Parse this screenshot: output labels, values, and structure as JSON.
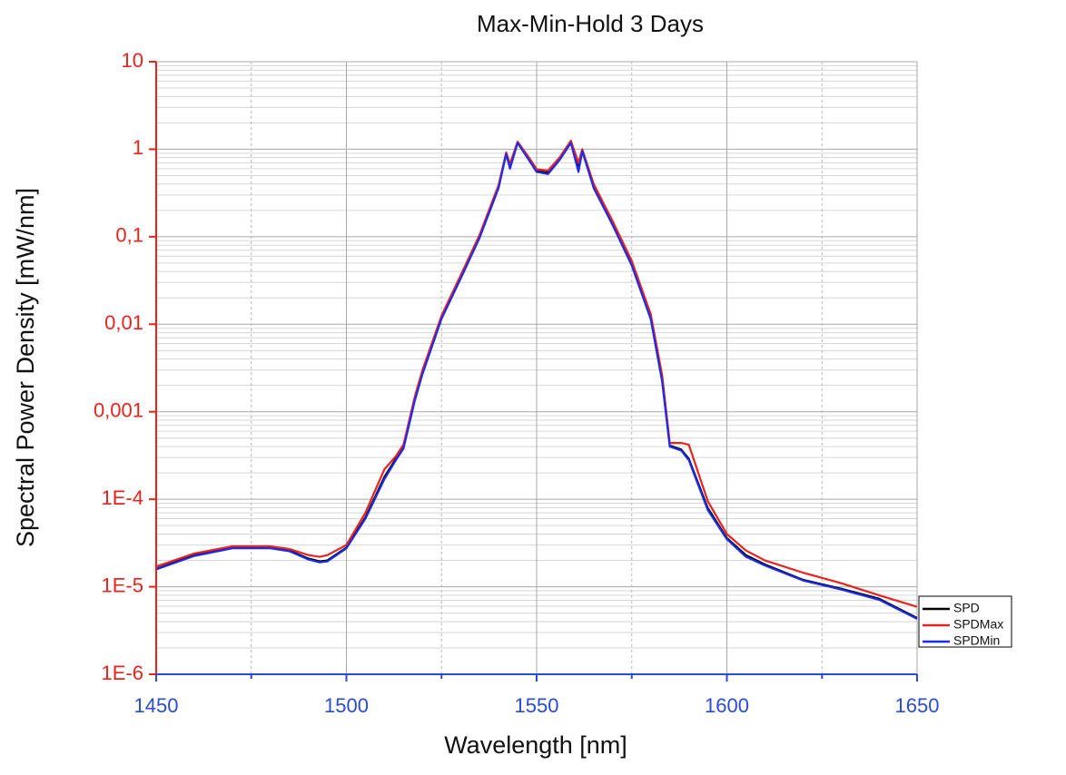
{
  "chart_data": {
    "type": "line",
    "title": "Max-Min-Hold 3 Days",
    "x_label": "Wavelength [nm]",
    "y_label": "Spectral Power Density [mW/nm]",
    "log_y": true,
    "grid": true,
    "minor_grid": true,
    "legend": "lower right outside",
    "xlim": [
      1450,
      1650
    ],
    "xticks": [
      1450,
      1500,
      1550,
      1600,
      1650
    ],
    "xminor_ticks": [
      1475,
      1525,
      1575,
      1625
    ],
    "ylim": [
      1e-06,
      10
    ],
    "yticks": [
      {
        "value": 1e-06,
        "label": "1E-6"
      },
      {
        "value": 1e-05,
        "label": "1E-5"
      },
      {
        "value": 0.0001,
        "label": "1E-4"
      },
      {
        "value": 0.001,
        "label": "0,001"
      },
      {
        "value": 0.01,
        "label": "0,01"
      },
      {
        "value": 0.1,
        "label": "0,1"
      },
      1,
      10
    ],
    "x": [
      1450,
      1460,
      1470,
      1480,
      1485,
      1490,
      1493,
      1495,
      1500,
      1505,
      1510,
      1513,
      1515,
      1518,
      1520,
      1525,
      1530,
      1535,
      1540,
      1542,
      1543,
      1545,
      1548,
      1550,
      1553,
      1556,
      1559,
      1561,
      1562,
      1565,
      1570,
      1575,
      1580,
      1583,
      1585,
      1588,
      1590,
      1595,
      1600,
      1605,
      1610,
      1620,
      1630,
      1640,
      1650
    ],
    "series": [
      {
        "name": "SPD",
        "color": "#000000",
        "values": [
          1.6e-05,
          2.3e-05,
          2.8e-05,
          2.8e-05,
          2.6e-05,
          2.1e-05,
          1.95e-05,
          2e-05,
          2.8e-05,
          6.2e-05,
          0.00018,
          0.00029,
          0.00039,
          0.0014,
          0.0028,
          0.0118,
          0.034,
          0.1,
          0.37,
          0.9,
          0.63,
          1.2,
          0.77,
          0.56,
          0.54,
          0.77,
          1.2,
          0.6,
          0.98,
          0.37,
          0.14,
          0.049,
          0.0118,
          0.0023,
          0.00041,
          0.00037,
          0.00029,
          7.9e-05,
          3.6e-05,
          2.3e-05,
          1.8e-05,
          1.2e-05,
          9.5e-06,
          7.3e-06,
          4.4e-06
        ]
      },
      {
        "name": "SPDMax",
        "color": "#e8231d",
        "values": [
          1.7e-05,
          2.4e-05,
          2.9e-05,
          2.9e-05,
          2.7e-05,
          2.3e-05,
          2.2e-05,
          2.3e-05,
          3e-05,
          7e-05,
          0.00022,
          0.00031,
          0.00042,
          0.0015,
          0.003,
          0.0125,
          0.036,
          0.105,
          0.39,
          0.92,
          0.68,
          1.22,
          0.8,
          0.59,
          0.57,
          0.8,
          1.25,
          0.7,
          1.0,
          0.4,
          0.15,
          0.053,
          0.013,
          0.0026,
          0.00044,
          0.00044,
          0.00042,
          9.5e-05,
          4e-05,
          2.6e-05,
          2e-05,
          1.45e-05,
          1.1e-05,
          8e-06,
          5.9e-06
        ]
      },
      {
        "name": "SPDMin",
        "color": "#1c2bf0",
        "values": [
          1.58e-05,
          2.25e-05,
          2.75e-05,
          2.75e-05,
          2.55e-05,
          2.05e-05,
          1.9e-05,
          1.95e-05,
          2.75e-05,
          6e-05,
          0.00017,
          0.00028,
          0.00038,
          0.00135,
          0.0027,
          0.0115,
          0.033,
          0.097,
          0.36,
          0.88,
          0.6,
          1.18,
          0.75,
          0.55,
          0.52,
          0.75,
          1.18,
          0.55,
          0.95,
          0.36,
          0.135,
          0.047,
          0.0114,
          0.0022,
          0.0004,
          0.00036,
          0.00028,
          7.5e-05,
          3.5e-05,
          2.2e-05,
          1.75e-05,
          1.18e-05,
          9.3e-06,
          7.1e-06,
          4.3e-06
        ]
      }
    ]
  }
}
